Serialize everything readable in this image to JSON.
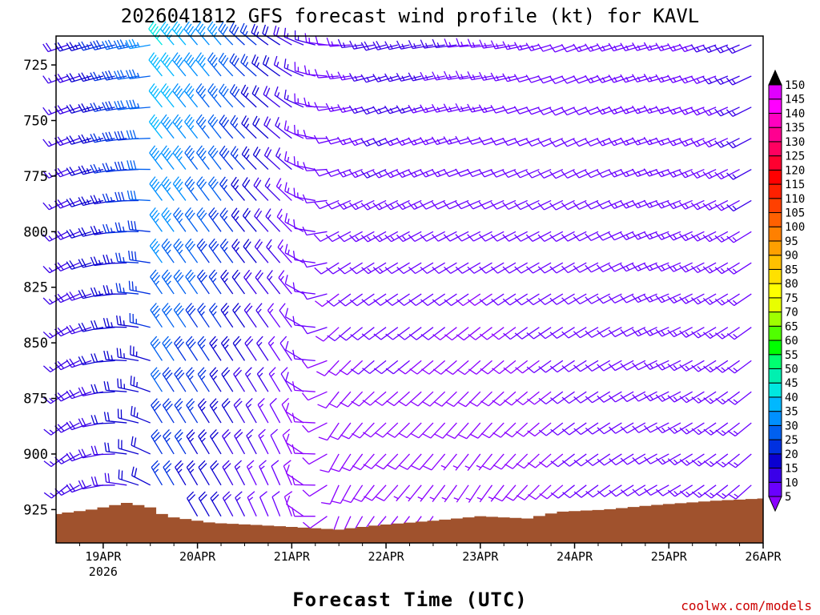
{
  "chart_data": {
    "type": "wind-barb-profile",
    "title": "2026041812 GFS forecast wind profile (kt) for KAVL",
    "xlabel": "Forecast Time (UTC)",
    "ylabel": "",
    "credit": "coolwx.com/models",
    "y_axis": {
      "quantity": "pressure (hPa)",
      "ylim": [
        940,
        712
      ],
      "ticks": [
        725,
        750,
        775,
        800,
        825,
        850,
        875,
        900,
        925
      ]
    },
    "x_axis": {
      "range_days_from_19APR00Z": [
        -0.5,
        7.0
      ],
      "ticks": [
        {
          "day": 0,
          "label": "19APR",
          "sublabel": "2026"
        },
        {
          "day": 1,
          "label": "20APR",
          "sublabel": ""
        },
        {
          "day": 2,
          "label": "21APR",
          "sublabel": ""
        },
        {
          "day": 3,
          "label": "22APR",
          "sublabel": ""
        },
        {
          "day": 4,
          "label": "23APR",
          "sublabel": ""
        },
        {
          "day": 5,
          "label": "24APR",
          "sublabel": ""
        },
        {
          "day": 6,
          "label": "25APR",
          "sublabel": ""
        },
        {
          "day": 7,
          "label": "26APR",
          "sublabel": ""
        }
      ]
    },
    "barb_levels_hPa": [
      716,
      730,
      744,
      758,
      772,
      786,
      800,
      814,
      828,
      843,
      858,
      872,
      886,
      900,
      914,
      928
    ],
    "time_step_hours": 3,
    "wind_keyframes": [
      {
        "hour": 0,
        "dir_upper": 255,
        "spd_upper": 25,
        "dir_lower": 260,
        "spd_lower": 18
      },
      {
        "hour": 12,
        "dir_upper": 260,
        "spd_upper": 35,
        "dir_lower": 300,
        "spd_lower": 20
      },
      {
        "hour": 15,
        "dir_upper": 320,
        "spd_upper": 45,
        "dir_lower": 330,
        "spd_lower": 25
      },
      {
        "hour": 30,
        "dir_upper": 320,
        "spd_upper": 35,
        "dir_lower": 330,
        "spd_lower": 20
      },
      {
        "hour": 48,
        "dir_upper": 300,
        "spd_upper": 18,
        "dir_lower": 340,
        "spd_lower": 8
      },
      {
        "hour": 60,
        "dir_upper": 270,
        "spd_upper": 12,
        "dir_lower": 200,
        "spd_lower": 8
      },
      {
        "hour": 72,
        "dir_upper": 255,
        "spd_upper": 18,
        "dir_lower": 220,
        "spd_lower": 7
      },
      {
        "hour": 96,
        "dir_upper": 265,
        "spd_upper": 14,
        "dir_lower": 210,
        "spd_lower": 6
      },
      {
        "hour": 120,
        "dir_upper": 250,
        "spd_upper": 12,
        "dir_lower": 230,
        "spd_lower": 10
      },
      {
        "hour": 144,
        "dir_upper": 255,
        "spd_upper": 14,
        "dir_lower": 240,
        "spd_lower": 12
      },
      {
        "hour": 168,
        "dir_upper": 245,
        "spd_upper": 16,
        "dir_lower": 225,
        "spd_lower": 14
      }
    ],
    "terrain_surface_pressure_hPa": [
      {
        "hour": -12,
        "p": 927
      },
      {
        "hour": -3,
        "p": 925
      },
      {
        "hour": 6,
        "p": 922
      },
      {
        "hour": 12,
        "p": 924
      },
      {
        "hour": 16,
        "p": 928
      },
      {
        "hour": 28,
        "p": 931
      },
      {
        "hour": 40,
        "p": 932
      },
      {
        "hour": 50,
        "p": 933
      },
      {
        "hour": 60,
        "p": 934
      },
      {
        "hour": 70,
        "p": 932
      },
      {
        "hour": 84,
        "p": 930
      },
      {
        "hour": 96,
        "p": 928
      },
      {
        "hour": 108,
        "p": 929
      },
      {
        "hour": 116,
        "p": 926
      },
      {
        "hour": 128,
        "p": 925
      },
      {
        "hour": 140,
        "p": 923
      },
      {
        "hour": 156,
        "p": 921
      },
      {
        "hour": 168,
        "p": 920
      }
    ],
    "colorbar": {
      "labels": [
        5,
        10,
        15,
        20,
        25,
        30,
        35,
        40,
        45,
        50,
        55,
        60,
        65,
        70,
        75,
        80,
        85,
        90,
        95,
        100,
        105,
        110,
        115,
        120,
        125,
        130,
        135,
        140,
        145,
        150
      ],
      "colors": [
        "#8a00ff",
        "#6a00ff",
        "#3a00e8",
        "#0a00d0",
        "#0030e0",
        "#0060f0",
        "#0090ff",
        "#00b8ff",
        "#00e8e0",
        "#00f0b0",
        "#00ff70",
        "#00ff00",
        "#50ff00",
        "#a0ff00",
        "#e8ff00",
        "#ffff00",
        "#ffe000",
        "#ffc000",
        "#ffa000",
        "#ff8000",
        "#ff6000",
        "#ff4000",
        "#ff2000",
        "#ff0000",
        "#ff0030",
        "#ff0060",
        "#ff0090",
        "#ff00c0",
        "#ff00ff",
        "#e000ff",
        "#000000"
      ]
    },
    "terrain_color": "#a0522d"
  }
}
